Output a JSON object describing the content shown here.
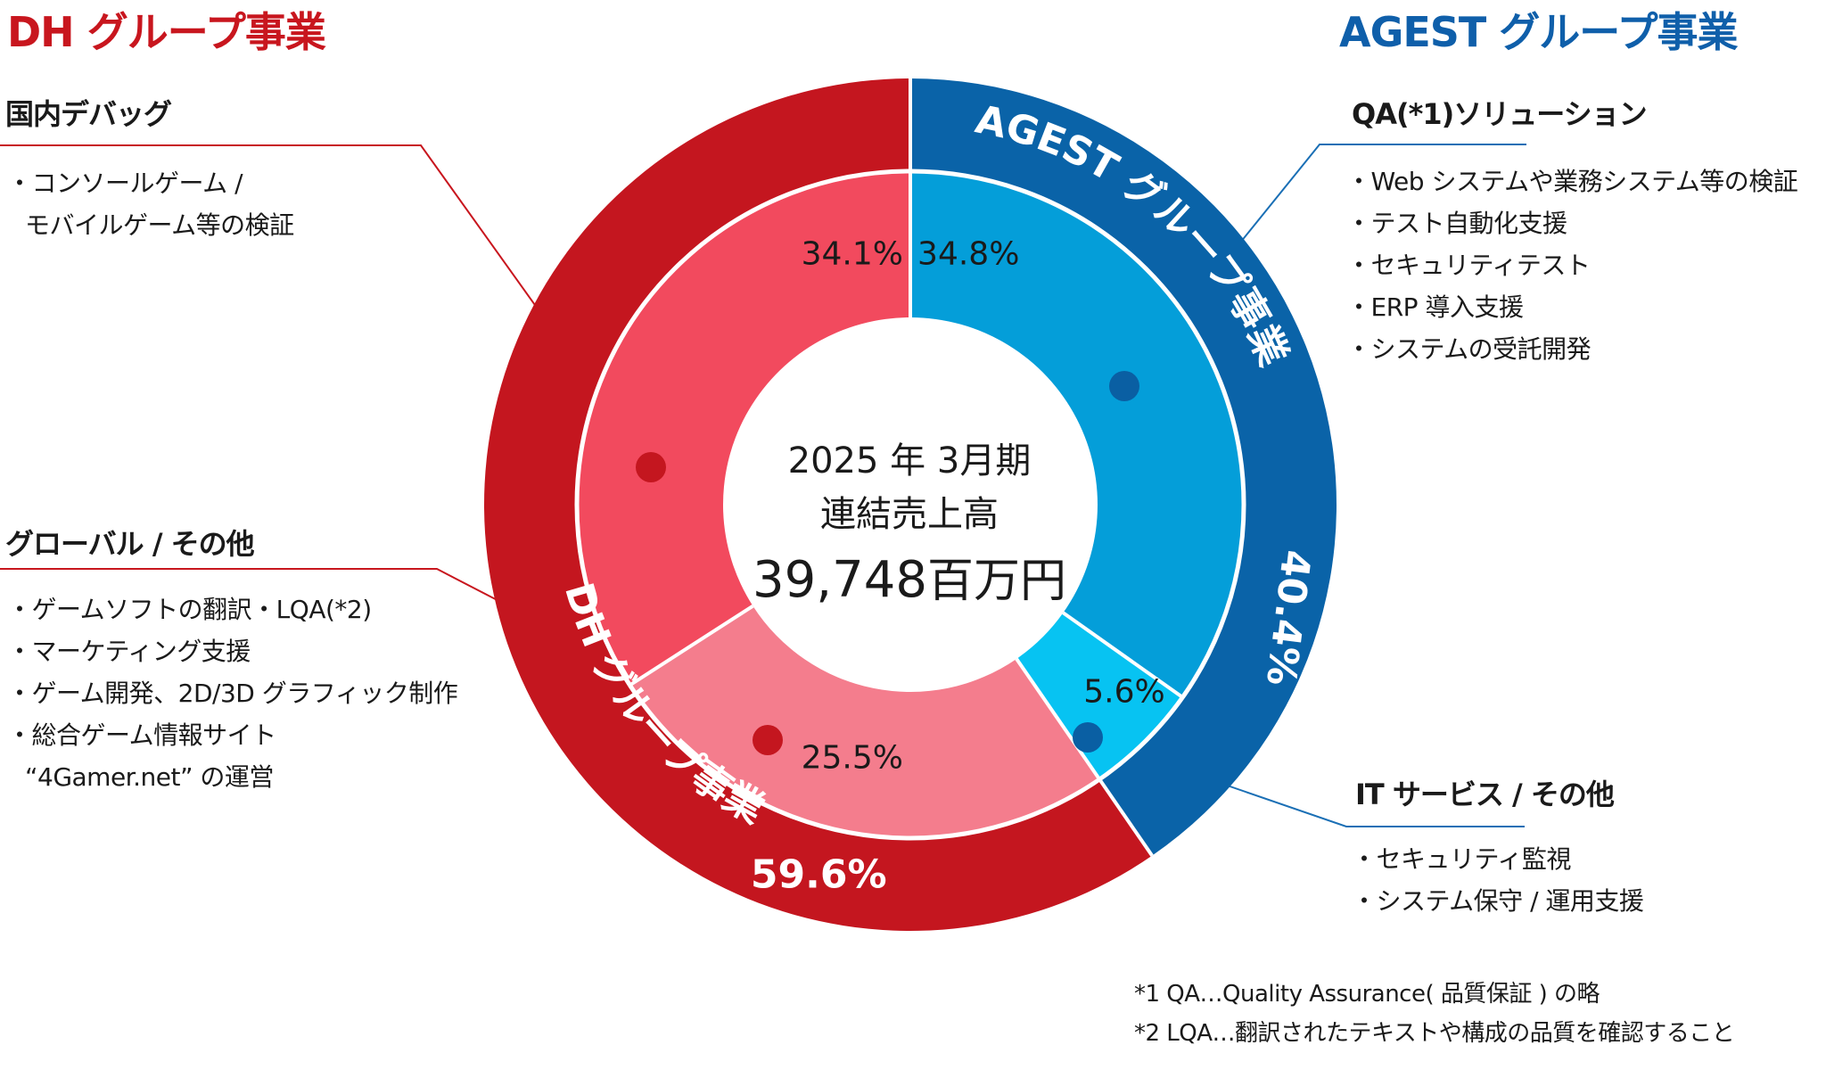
{
  "headers": {
    "left": "DH グループ事業",
    "right": "AGEST グループ事業"
  },
  "center": {
    "line1": "2025 年 3月期",
    "line2": "連結売上高",
    "total_value": "39,748",
    "total_unit": "百万円"
  },
  "sections": {
    "domestic_debug": {
      "title": "国内デバッグ",
      "items": [
        "コンソールゲーム /"
      ],
      "continuation": "モバイルゲーム等の検証"
    },
    "global": {
      "title": "グローバル / その他",
      "items": [
        "ゲームソフトの翻訳・LQA(*2)",
        "マーケティング支援",
        "ゲーム開発、2D/3D グラフィック制作",
        "総合ゲーム情報サイト"
      ],
      "continuation": "“4Gamer.net” の運営"
    },
    "qa_solution": {
      "title": "QA(*1)ソリューション",
      "items": [
        "Web システムや業務システム等の検証",
        "テスト自動化支援",
        "セキュリティテスト",
        "ERP 導入支援",
        "システムの受託開発"
      ]
    },
    "it_service": {
      "title": "IT サービス / その他",
      "items": [
        "セキュリティ監視",
        "システム保守 / 運用支援"
      ]
    }
  },
  "notes": [
    "*1 QA…Quality Assurance( 品質保証 ) の略",
    "*2 LQA…翻訳されたテキストや構成の品質を確認すること"
  ],
  "colors": {
    "dh_outer": "#c4161f",
    "dh_domestic": "#f24a5e",
    "dh_global": "#f47d8d",
    "agest_outer": "#0a63a8",
    "agest_qa": "#049ed9",
    "agest_it": "#07c3f2",
    "red_line": "#c8161e",
    "blue_line": "#1a6fb5"
  },
  "chart_data": {
    "type": "pie",
    "outer": {
      "slices": [
        {
          "name": "AGEST グループ事業",
          "value": 40.4,
          "label": "40.4%"
        },
        {
          "name": "DH グループ事業",
          "value": 59.6,
          "label": "59.6%"
        }
      ]
    },
    "inner": {
      "slices": [
        {
          "name": "QA(*1)ソリューション",
          "value": 34.8,
          "label": "34.8%"
        },
        {
          "name": "IT サービス / その他",
          "value": 5.6,
          "label": "5.6%"
        },
        {
          "name": "グローバル / その他",
          "value": 25.5,
          "label": "25.5%"
        },
        {
          "name": "国内デバッグ",
          "value": 34.1,
          "label": "34.1%"
        }
      ]
    }
  }
}
